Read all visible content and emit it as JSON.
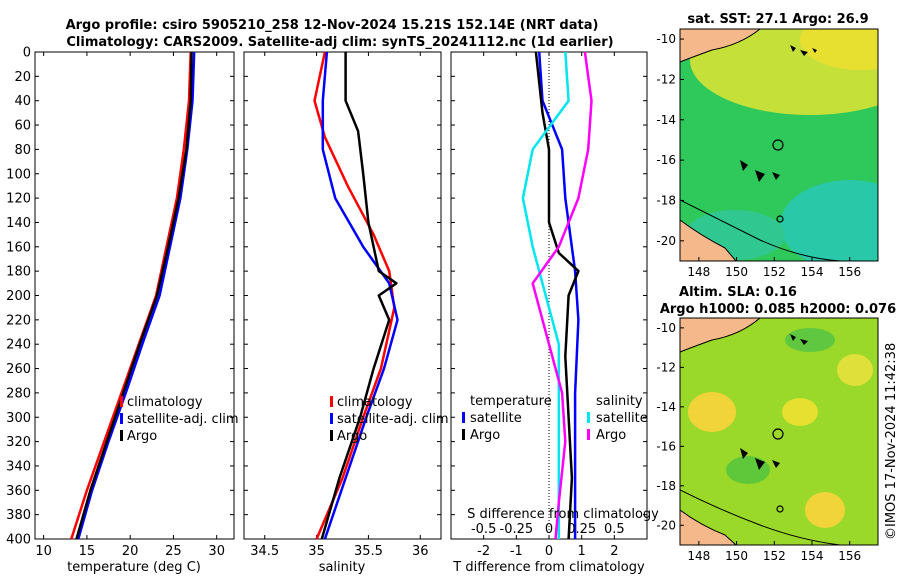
{
  "title_line1": "Argo profile: csiro 5905210_258 12-Nov-2024 15.21S 152.14E (NRT data)",
  "title_line2": "Climatology: CARS2009. Satellite-adj clim: synTS_20241112.nc (1d earlier)",
  "watermark": "©IMOS 17-Nov-2024 11:42:38",
  "colors": {
    "climatology": "#ff0000",
    "satellite": "#0000ff",
    "argo": "#000000",
    "cyan": "#00e5ee",
    "magenta": "#ff00ff",
    "land": "#f5b88a"
  },
  "chart_data": [
    {
      "id": "temperature",
      "type": "line",
      "xlabel": "temperature (deg C)",
      "ylabel": "",
      "xlim": [
        9,
        32
      ],
      "ylim": [
        400,
        0
      ],
      "xticks": [
        "10",
        "15",
        "20",
        "25",
        "30"
      ],
      "yticks": [
        "0",
        "20",
        "40",
        "60",
        "80",
        "100",
        "120",
        "140",
        "160",
        "180",
        "200",
        "220",
        "240",
        "260",
        "280",
        "300",
        "320",
        "340",
        "360",
        "380",
        "400"
      ],
      "legend": [
        "climatology",
        "satellite-adj. clim",
        "Argo"
      ],
      "series": [
        {
          "name": "climatology",
          "color": "#ff0000",
          "points": [
            [
              27.0,
              0
            ],
            [
              26.8,
              40
            ],
            [
              26.2,
              80
            ],
            [
              25.4,
              120
            ],
            [
              24.2,
              160
            ],
            [
              23.0,
              200
            ],
            [
              21.0,
              240
            ],
            [
              19.0,
              280
            ],
            [
              17.0,
              320
            ],
            [
              15.0,
              360
            ],
            [
              13.2,
              400
            ]
          ]
        },
        {
          "name": "satellite-adj. clim",
          "color": "#0000ff",
          "points": [
            [
              27.4,
              0
            ],
            [
              27.2,
              40
            ],
            [
              26.6,
              80
            ],
            [
              25.8,
              120
            ],
            [
              24.6,
              160
            ],
            [
              23.4,
              200
            ],
            [
              21.4,
              240
            ],
            [
              19.5,
              280
            ],
            [
              17.5,
              320
            ],
            [
              15.6,
              360
            ],
            [
              14.0,
              400
            ]
          ]
        },
        {
          "name": "Argo",
          "color": "#000000",
          "points": [
            [
              27.1,
              0
            ],
            [
              27.0,
              40
            ],
            [
              26.5,
              80
            ],
            [
              25.6,
              120
            ],
            [
              24.4,
              160
            ],
            [
              23.1,
              200
            ],
            [
              21.1,
              240
            ],
            [
              19.2,
              280
            ],
            [
              17.3,
              320
            ],
            [
              15.4,
              360
            ],
            [
              13.8,
              400
            ]
          ]
        }
      ]
    },
    {
      "id": "salinity",
      "type": "line",
      "xlabel": "salinity",
      "ylabel": "",
      "xlim": [
        34.3,
        36.2
      ],
      "ylim": [
        400,
        0
      ],
      "xticks": [
        "34.5",
        "35",
        "35.5",
        "36"
      ],
      "legend": [
        "climatology",
        "satellite-adj. clim",
        "Argo"
      ],
      "series": [
        {
          "name": "climatology",
          "color": "#ff0000",
          "points": [
            [
              35.08,
              0
            ],
            [
              34.98,
              40
            ],
            [
              35.08,
              70
            ],
            [
              35.3,
              110
            ],
            [
              35.55,
              150
            ],
            [
              35.7,
              180
            ],
            [
              35.75,
              210
            ],
            [
              35.62,
              260
            ],
            [
              35.45,
              300
            ],
            [
              35.25,
              350
            ],
            [
              35.0,
              400
            ]
          ]
        },
        {
          "name": "satellite-adj. clim",
          "color": "#0000ff",
          "points": [
            [
              35.1,
              0
            ],
            [
              35.06,
              40
            ],
            [
              35.06,
              80
            ],
            [
              35.18,
              120
            ],
            [
              35.45,
              160
            ],
            [
              35.7,
              190
            ],
            [
              35.78,
              220
            ],
            [
              35.65,
              260
            ],
            [
              35.48,
              300
            ],
            [
              35.28,
              350
            ],
            [
              35.08,
              400
            ]
          ]
        },
        {
          "name": "Argo",
          "color": "#000000",
          "points": [
            [
              35.28,
              0
            ],
            [
              35.28,
              40
            ],
            [
              35.4,
              65
            ],
            [
              35.45,
              100
            ],
            [
              35.5,
              140
            ],
            [
              35.6,
              180
            ],
            [
              35.77,
              190
            ],
            [
              35.6,
              200
            ],
            [
              35.7,
              220
            ],
            [
              35.55,
              260
            ],
            [
              35.42,
              300
            ],
            [
              35.22,
              350
            ],
            [
              35.05,
              400
            ]
          ]
        }
      ]
    },
    {
      "id": "differences",
      "type": "line",
      "xlabel": "T difference from climatology",
      "xlabel_top": "S difference from climatology",
      "xlim": [
        -3,
        3
      ],
      "ylim": [
        400,
        0
      ],
      "xticks": [
        "-2",
        "-1",
        "0",
        "1",
        "2"
      ],
      "s_xticks": [
        "-0.5",
        "-0.25",
        "0",
        "0.25",
        "0.5"
      ],
      "legend_temperature_title": "temperature",
      "legend_salinity_title": "salinity",
      "legend_temperature": [
        "satellite",
        "Argo"
      ],
      "legend_salinity": [
        "satellite",
        "Argo"
      ],
      "series": [
        {
          "name": "temperature satellite",
          "color": "#0000ff",
          "points": [
            [
              -0.3,
              0
            ],
            [
              -0.2,
              40
            ],
            [
              0.4,
              80
            ],
            [
              0.5,
              120
            ],
            [
              0.8,
              180
            ],
            [
              0.9,
              220
            ],
            [
              0.8,
              280
            ],
            [
              0.8,
              340
            ],
            [
              0.8,
              400
            ]
          ]
        },
        {
          "name": "temperature Argo",
          "color": "#000000",
          "points": [
            [
              -0.4,
              0
            ],
            [
              -0.2,
              50
            ],
            [
              0.0,
              80
            ],
            [
              0.0,
              140
            ],
            [
              0.3,
              165
            ],
            [
              0.9,
              180
            ],
            [
              0.6,
              200
            ],
            [
              0.5,
              250
            ],
            [
              0.6,
              300
            ],
            [
              0.7,
              350
            ],
            [
              0.6,
              400
            ]
          ]
        },
        {
          "name": "salinity satellite",
          "color": "#00e5ee",
          "points": [
            [
              0.5,
              0
            ],
            [
              0.6,
              40
            ],
            [
              -0.5,
              80
            ],
            [
              -0.8,
              120
            ],
            [
              -0.5,
              160
            ],
            [
              -0.1,
              200
            ],
            [
              0.3,
              240
            ],
            [
              0.3,
              300
            ],
            [
              0.3,
              350
            ],
            [
              0.3,
              400
            ]
          ]
        },
        {
          "name": "salinity Argo",
          "color": "#ff00ff",
          "points": [
            [
              1.1,
              0
            ],
            [
              1.3,
              40
            ],
            [
              1.2,
              80
            ],
            [
              0.9,
              120
            ],
            [
              0.3,
              160
            ],
            [
              -0.5,
              190
            ],
            [
              0.0,
              240
            ],
            [
              0.4,
              280
            ],
            [
              0.5,
              320
            ],
            [
              0.3,
              370
            ],
            [
              0.2,
              400
            ]
          ]
        }
      ]
    },
    {
      "id": "sst_map",
      "type": "heatmap",
      "title": "sat. SST: 27.1 Argo: 26.9",
      "xticks": [
        "148",
        "150",
        "152",
        "154",
        "156"
      ],
      "yticks": [
        "-10",
        "-12",
        "-14",
        "-16",
        "-18",
        "-20"
      ],
      "xlim": [
        147,
        157.5
      ],
      "ylim": [
        -21,
        -9.5
      ],
      "profile_location": [
        152.14,
        -15.21
      ]
    },
    {
      "id": "sla_map",
      "type": "heatmap",
      "title": "Altim. SLA: 0.16",
      "subtitle": "Argo h1000: 0.085 h2000: 0.076",
      "xticks": [
        "148",
        "150",
        "152",
        "154",
        "156"
      ],
      "yticks": [
        "-10",
        "-12",
        "-14",
        "-16",
        "-18",
        "-20"
      ],
      "xlim": [
        147,
        157.5
      ],
      "ylim": [
        -21,
        -9.5
      ],
      "profile_location": [
        152.14,
        -15.21
      ]
    }
  ]
}
